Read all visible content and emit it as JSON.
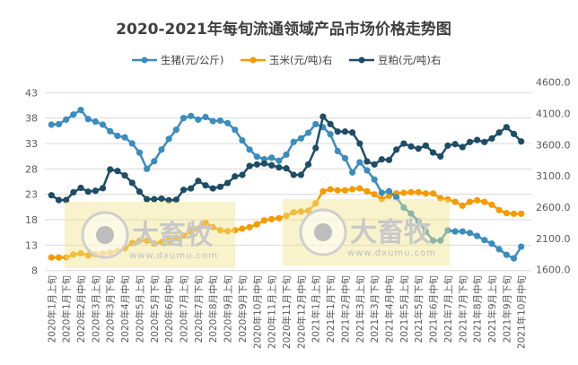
{
  "chart_data": {
    "type": "line",
    "title": "2020-2021年每旬流通领域产品市场价格走势图",
    "categories": [
      "2020年1月上旬",
      "2020年1月中旬",
      "2020年1月下旬",
      "2020年2月上旬",
      "2020年2月中旬",
      "2020年2月下旬",
      "2020年3月上旬",
      "2020年3月中旬",
      "2020年3月下旬",
      "2020年4月上旬",
      "2020年4月中旬",
      "2020年4月下旬",
      "2020年5月上旬",
      "2020年5月中旬",
      "2020年5月下旬",
      "2020年6月上旬",
      "2020年6月中旬",
      "2020年6月下旬",
      "2020年7月上旬",
      "2020年7月中旬",
      "2020年7月下旬",
      "2020年8月上旬",
      "2020年8月中旬",
      "2020年8月下旬",
      "2020年9月上旬",
      "2020年9月中旬",
      "2020年9月下旬",
      "2020年10月上旬",
      "2020年10月中旬",
      "2020年10月下旬",
      "2020年11月上旬",
      "2020年11月中旬",
      "2020年11月下旬",
      "2020年12月上旬",
      "2020年12月中旬",
      "2020年12月下旬",
      "2021年1月上旬",
      "2021年1月中旬",
      "2021年1月下旬",
      "2021年2月上旬",
      "2021年2月中旬",
      "2021年2月下旬",
      "2021年3月上旬",
      "2021年3月中旬",
      "2021年3月下旬",
      "2021年4月上旬",
      "2021年4月中旬",
      "2021年4月下旬",
      "2021年5月上旬",
      "2021年5月中旬",
      "2021年5月下旬",
      "2021年6月上旬",
      "2021年6月中旬",
      "2021年6月下旬",
      "2021年7月上旬",
      "2021年7月中旬",
      "2021年7月下旬",
      "2021年8月上旬",
      "2021年8月中旬",
      "2021年8月下旬",
      "2021年9月上旬",
      "2021年9月中旬",
      "2021年9月下旬",
      "2021年10月上旬",
      "2021年10月中旬"
    ],
    "series": [
      {
        "name": "生猪(元/公斤)",
        "axis": "left",
        "color": "#3b8dbd",
        "values": [
          36.7,
          36.8,
          37.7,
          38.7,
          39.6,
          37.8,
          37.3,
          36.7,
          35.4,
          34.5,
          34.2,
          33.0,
          31.2,
          28.0,
          29.5,
          31.8,
          33.9,
          35.7,
          38.0,
          38.4,
          37.7,
          38.2,
          37.4,
          37.5,
          37.0,
          35.7,
          33.6,
          31.8,
          30.4,
          29.9,
          30.2,
          29.6,
          30.8,
          33.3,
          34.0,
          35.1,
          36.8,
          36.2,
          34.8,
          31.5,
          30.1,
          27.3,
          29.3,
          27.7,
          25.9,
          23.3,
          23.6,
          22.4,
          20.4,
          19.2,
          17.7,
          15.7,
          13.9,
          13.9,
          15.9,
          15.7,
          15.7,
          15.4,
          14.8,
          14.0,
          13.3,
          12.2,
          11.1,
          10.4,
          12.7
        ]
      },
      {
        "name": "玉米(元/吨)右",
        "axis": "right",
        "color": "#f59b00",
        "values": [
          1795,
          1795,
          1795,
          1842,
          1860,
          1828,
          1846,
          1860,
          1875,
          1899,
          1946,
          2027,
          2065,
          2065,
          2017,
          2041,
          2070,
          2112,
          2145,
          2208,
          2256,
          2352,
          2280,
          2231,
          2217,
          2231,
          2256,
          2280,
          2327,
          2389,
          2409,
          2424,
          2460,
          2518,
          2530,
          2543,
          2662,
          2854,
          2887,
          2870,
          2870,
          2887,
          2901,
          2854,
          2805,
          2733,
          2782,
          2820,
          2830,
          2840,
          2840,
          2820,
          2820,
          2743,
          2725,
          2686,
          2624,
          2686,
          2710,
          2686,
          2639,
          2553,
          2504,
          2495,
          2495
        ]
      },
      {
        "name": "豆粕(元/吨)右",
        "axis": "right",
        "color": "#1e4d66",
        "values": [
          2791,
          2714,
          2714,
          2838,
          2909,
          2848,
          2862,
          2904,
          3203,
          3179,
          3108,
          2990,
          2848,
          2728,
          2728,
          2738,
          2710,
          2719,
          2877,
          2901,
          3020,
          2949,
          2901,
          2926,
          2987,
          3092,
          3117,
          3260,
          3284,
          3299,
          3270,
          3236,
          3221,
          3117,
          3117,
          3284,
          3547,
          4049,
          3930,
          3810,
          3810,
          3795,
          3619,
          3332,
          3284,
          3365,
          3356,
          3522,
          3619,
          3571,
          3537,
          3586,
          3475,
          3413,
          3586,
          3609,
          3561,
          3643,
          3676,
          3643,
          3700,
          3795,
          3881,
          3772,
          3652
        ]
      }
    ],
    "y_left": {
      "ylim": [
        8,
        43
      ],
      "ticks": [
        "43",
        "38",
        "33",
        "28",
        "23",
        "18",
        "13",
        "8"
      ]
    },
    "y_right": {
      "ylim": [
        1600,
        4600
      ],
      "ticks": [
        "4600.0",
        "4100.0",
        "3600.0",
        "3100.0",
        "2600.0",
        "2100.0",
        "1600.0"
      ]
    },
    "x_label_every": 2,
    "grid": "horizontal-left",
    "legend": "top",
    "watermark": {
      "name": "大畜牧",
      "url": "www.dxumu.com"
    }
  }
}
